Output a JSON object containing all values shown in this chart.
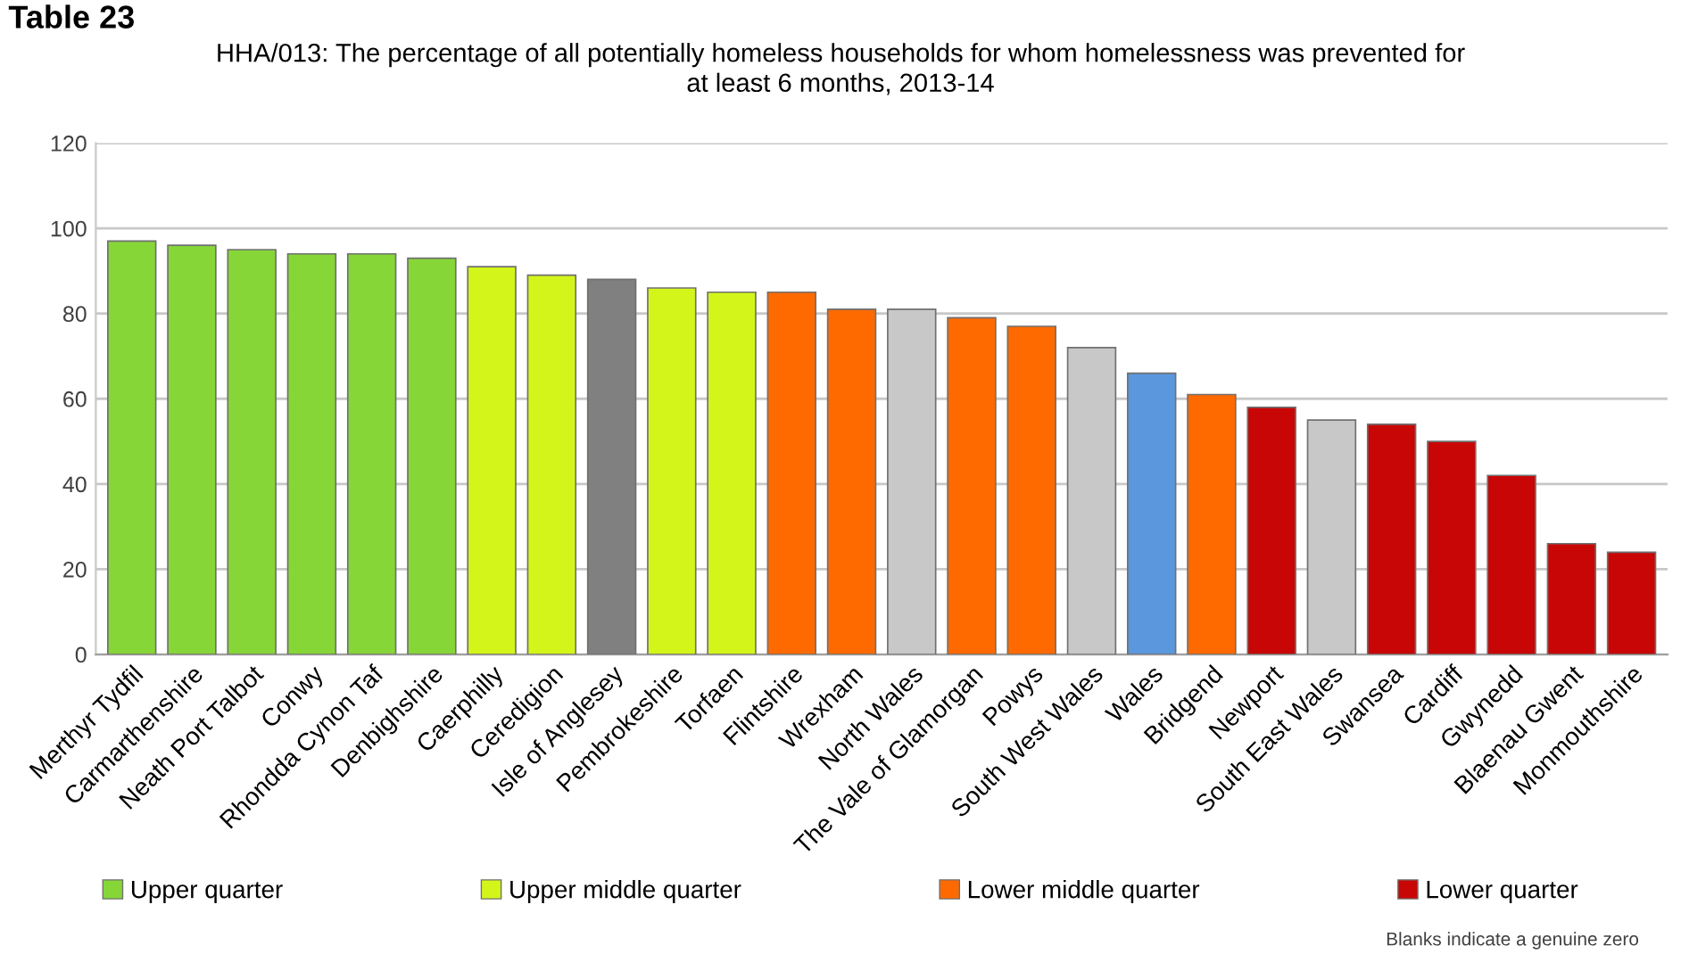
{
  "chart_data": {
    "type": "bar",
    "title": "HHA/013: The percentage of all potentially homeless households for whom homelessness was prevented for\nat least 6 months, 2013-14",
    "categories": [
      "Merthyr Tydfil",
      "Carmarthenshire",
      "Neath Port Talbot",
      "Conwy",
      "Rhondda Cynon Taf",
      "Denbighshire",
      "Caerphilly",
      "Ceredigion",
      "Isle of Anglesey",
      "Pembrokeshire",
      "Torfaen",
      "Flintshire",
      "Wrexham",
      "North Wales",
      "The Vale of Glamorgan",
      "Powys",
      "South West Wales",
      "Wales",
      "Bridgend",
      "Newport",
      "South East Wales",
      "Swansea",
      "Cardiff",
      "Gwynedd",
      "Blaenau Gwent",
      "Monmouthshire"
    ],
    "series": [
      {
        "name": "Upper quarter",
        "color": "#86d638",
        "values": [
          97,
          96,
          95,
          94,
          94,
          93,
          null,
          null,
          null,
          null,
          null,
          null,
          null,
          null,
          null,
          null,
          null,
          null,
          null,
          null,
          null,
          null,
          null,
          null,
          null,
          null
        ]
      },
      {
        "name": "Upper middle quarter",
        "color": "#d4f51a",
        "values": [
          null,
          null,
          null,
          null,
          null,
          null,
          91,
          89,
          null,
          86,
          85,
          null,
          null,
          null,
          null,
          null,
          null,
          null,
          null,
          null,
          null,
          null,
          null,
          null,
          null,
          null
        ]
      },
      {
        "name": "Lower middle quarter",
        "color": "#ff6a00",
        "values": [
          null,
          null,
          null,
          null,
          null,
          null,
          null,
          null,
          null,
          null,
          null,
          85,
          81,
          null,
          79,
          77,
          null,
          null,
          61,
          null,
          null,
          null,
          null,
          null,
          null,
          null
        ]
      },
      {
        "name": "Lower quarter",
        "color": "#c80606",
        "values": [
          null,
          null,
          null,
          null,
          null,
          null,
          null,
          null,
          null,
          null,
          null,
          null,
          null,
          null,
          null,
          null,
          null,
          null,
          null,
          58,
          null,
          54,
          50,
          42,
          26,
          24
        ]
      },
      {
        "color": "#808080",
        "values": [
          null,
          null,
          null,
          null,
          null,
          null,
          null,
          null,
          88,
          null,
          null,
          null,
          null,
          null,
          null,
          null,
          null,
          null,
          null,
          null,
          null,
          null,
          null,
          null,
          null,
          null
        ]
      },
      {
        "color": "#c8c8c8",
        "values": [
          null,
          null,
          null,
          null,
          null,
          null,
          null,
          null,
          null,
          null,
          null,
          null,
          null,
          81,
          null,
          null,
          72,
          null,
          null,
          null,
          55,
          null,
          null,
          null,
          null,
          null
        ]
      },
      {
        "color": "#5b97dc",
        "values": [
          null,
          null,
          null,
          null,
          null,
          null,
          null,
          null,
          null,
          null,
          null,
          null,
          null,
          null,
          null,
          null,
          null,
          66,
          null,
          null,
          null,
          null,
          null,
          null,
          null,
          null
        ]
      }
    ],
    "ylim": [
      0,
      120
    ],
    "yticks": [
      0,
      20,
      40,
      60,
      80,
      100,
      120
    ],
    "grid": "y",
    "legend": "bottom",
    "annotations": [
      "Table 23",
      "Blanks indicate a genuine zero"
    ]
  }
}
